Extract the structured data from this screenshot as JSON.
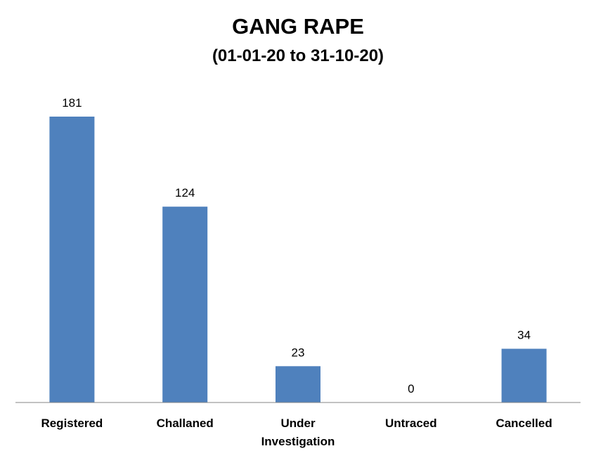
{
  "chart_data": {
    "type": "bar",
    "title": "GANG RAPE",
    "subtitle": "(01-01-20 to 31-10-20)",
    "categories": [
      "Registered",
      "Challaned",
      "Under Investigation",
      "Untraced",
      "Cancelled"
    ],
    "values": [
      181,
      124,
      23,
      0,
      34
    ],
    "xlabel": "",
    "ylabel": "",
    "ylim": [
      0,
      181
    ],
    "grid": false,
    "legend": "none",
    "bar_color": "#4F81BD",
    "axis_color": "#868686"
  }
}
